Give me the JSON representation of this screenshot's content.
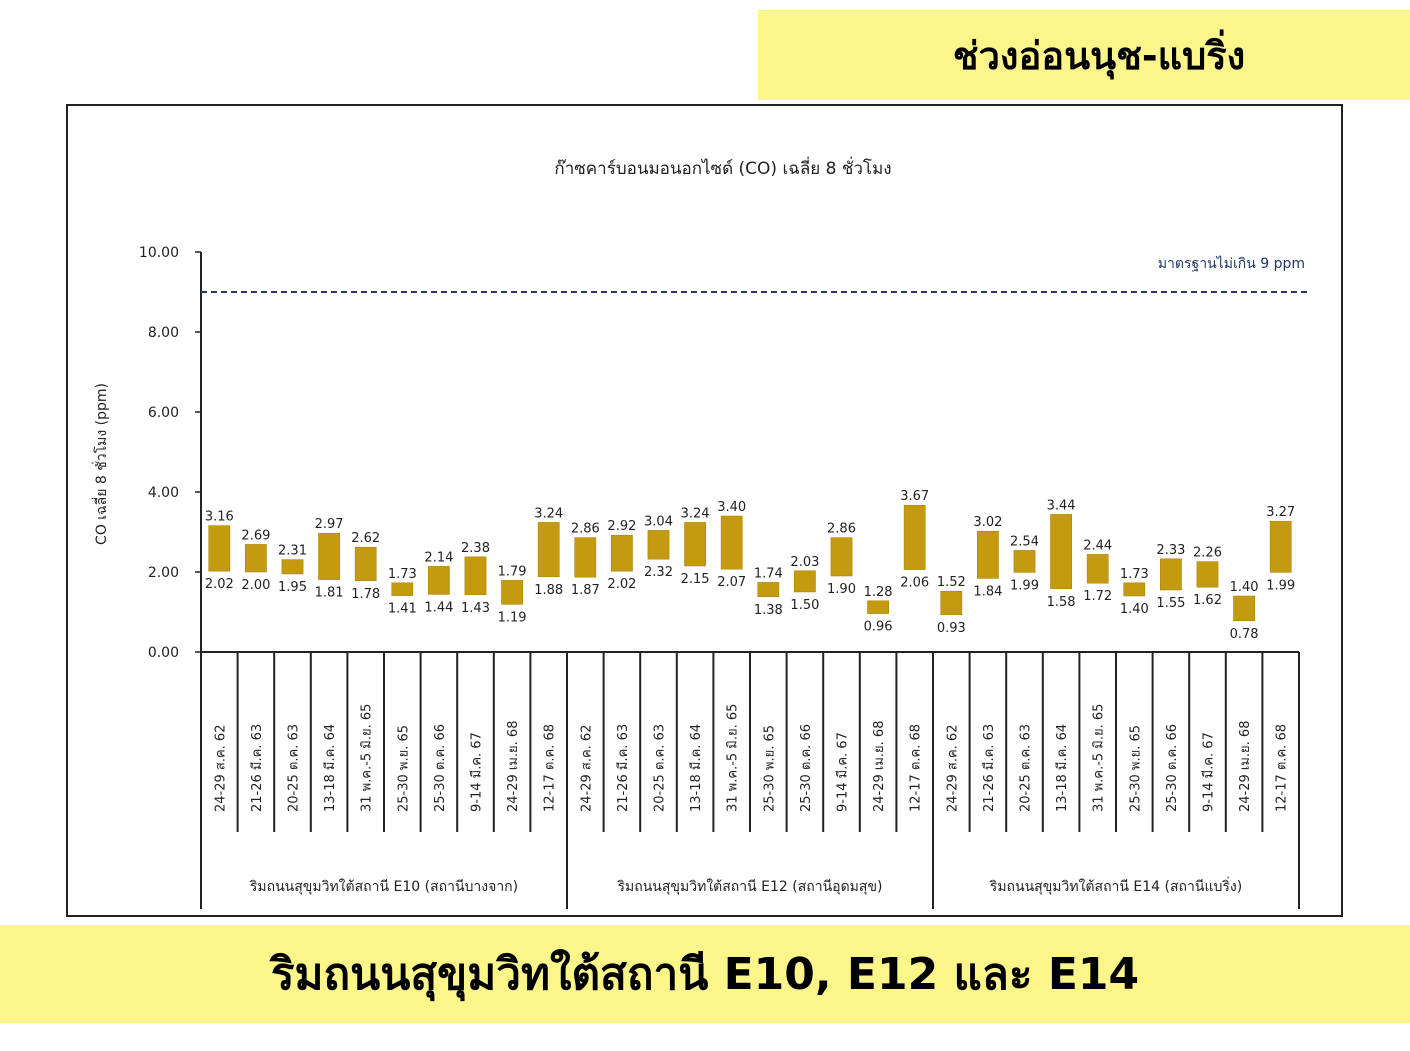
{
  "header": {
    "banner_text": "ช่วงอ่อนนุช-แบริ่ง"
  },
  "footer": {
    "banner_text": "ริมถนนสุขุมวิทใต้สถานี E10, E12 และ E14"
  },
  "colors": {
    "bar": "#c49a10",
    "bar_edge": "#a67f00",
    "standard_line": "#1f3864",
    "banner": "#fbf58a"
  },
  "chart_data": {
    "type": "bar",
    "subtype": "floating-range",
    "title": "ก๊าซคาร์บอนมอนอกไซด์ (CO) เฉลี่ย 8 ชั่วโมง",
    "ylabel": "CO เฉลี่ย 8 ชั่วโมง (ppm)",
    "xlabel": "",
    "ylim": [
      0,
      10
    ],
    "yticks": [
      "0.00",
      "2.00",
      "4.00",
      "6.00",
      "8.00",
      "10.00"
    ],
    "ytick_values": [
      0,
      2,
      4,
      6,
      8,
      10
    ],
    "grid": false,
    "reference_line": {
      "value": 9,
      "label": "มาตรฐานไม่เกิน 9 ppm",
      "style": "dashed"
    },
    "groups": [
      {
        "label": "ริมถนนสุขุมวิทใต้สถานี E10 (สถานีบางจาก)",
        "size": 10
      },
      {
        "label": "ริมถนนสุขุมวิทใต้สถานี E12 (สถานีอุดมสุข)",
        "size": 10
      },
      {
        "label": "ริมถนนสุขุมวิทใต้สถานี E14 (สถานีแบริ่ง)",
        "size": 10
      }
    ],
    "categories": [
      "24-29 ส.ค. 62",
      "21-26 มี.ค. 63",
      "20-25 ต.ค. 63",
      "13-18 มี.ค. 64",
      "31 พ.ค.-5 มิ.ย. 65",
      "25-30 พ.ย. 65",
      "25-30 ต.ค. 66",
      "9-14 มี.ค. 67",
      "24-29 เม.ย. 68",
      "12-17 ต.ค. 68",
      "24-29 ส.ค. 62",
      "21-26 มี.ค. 63",
      "20-25 ต.ค. 63",
      "13-18 มี.ค. 64",
      "31 พ.ค.-5 มิ.ย. 65",
      "25-30 พ.ย. 65",
      "25-30 ต.ค. 66",
      "9-14 มี.ค. 67",
      "24-29 เม.ย. 68",
      "12-17 ต.ค. 68",
      "24-29 ส.ค. 62",
      "21-26 มี.ค. 63",
      "20-25 ต.ค. 63",
      "13-18 มี.ค. 64",
      "31 พ.ค.-5 มิ.ย. 65",
      "25-30 พ.ย. 65",
      "25-30 ต.ค. 66",
      "9-14 มี.ค. 67",
      "24-29 เม.ย. 68",
      "12-17 ต.ค. 68"
    ],
    "series": [
      {
        "name": "max",
        "values": [
          3.16,
          2.69,
          2.31,
          2.97,
          2.62,
          1.73,
          2.14,
          2.38,
          1.79,
          3.24,
          2.86,
          2.92,
          3.04,
          3.24,
          3.4,
          1.74,
          2.03,
          2.86,
          1.28,
          3.67,
          1.52,
          3.02,
          2.54,
          3.44,
          2.44,
          1.73,
          2.33,
          2.26,
          1.4,
          3.27
        ]
      },
      {
        "name": "min",
        "values": [
          2.02,
          2.0,
          1.95,
          1.81,
          1.78,
          1.41,
          1.44,
          1.43,
          1.19,
          1.88,
          1.87,
          2.02,
          2.32,
          2.15,
          2.07,
          1.38,
          1.5,
          1.9,
          0.96,
          2.06,
          0.93,
          1.84,
          1.99,
          1.58,
          1.72,
          1.4,
          1.55,
          1.62,
          0.78,
          1.99
        ]
      }
    ],
    "max_labels": [
      "3.16",
      "2.69",
      "2.31",
      "2.97",
      "2.62",
      "1.73",
      "2.14",
      "2.38",
      "1.79",
      "3.24",
      "2.86",
      "2.92",
      "3.04",
      "3.24",
      "3.40",
      "1.74",
      "2.03",
      "2.86",
      "1.28",
      "3.67",
      "1.52",
      "3.02",
      "2.54",
      "3.44",
      "2.44",
      "1.73",
      "2.33",
      "2.26",
      "1.40",
      "3.27"
    ],
    "min_labels": [
      "2.02",
      "2.00",
      "1.95",
      "1.81",
      "1.78",
      "1.41",
      "1.44",
      "1.43",
      "1.19",
      "1.88",
      "1.87",
      "2.02",
      "2.32",
      "2.15",
      "2.07",
      "1.38",
      "1.50",
      "1.90",
      "0.96",
      "2.06",
      "0.93",
      "1.84",
      "1.99",
      "1.58",
      "1.72",
      "1.40",
      "1.55",
      "1.62",
      "0.78",
      "1.99"
    ]
  }
}
